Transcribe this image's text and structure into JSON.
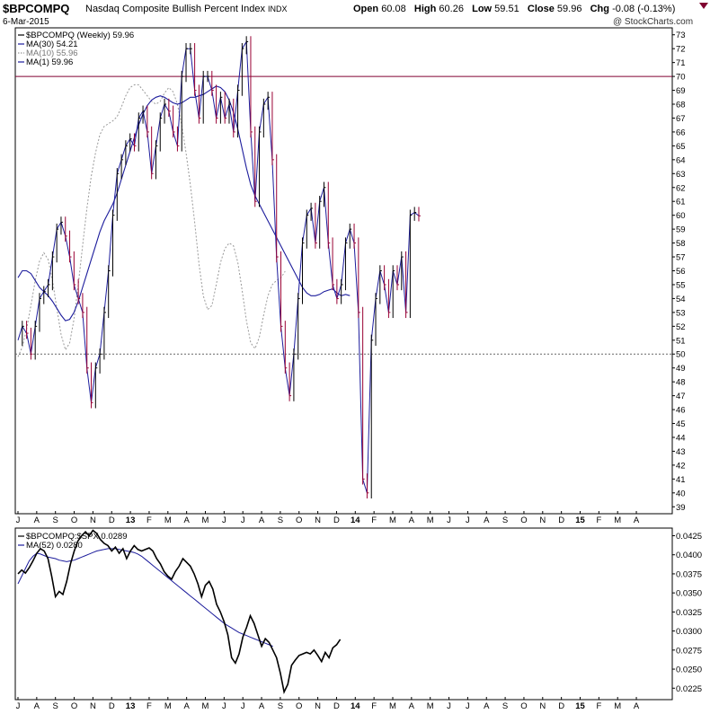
{
  "header": {
    "ticker": "$BPCOMPQ",
    "name": "Nasdaq Composite Bullish Percent Index",
    "exchange": "INDX",
    "date": "6-Mar-2015",
    "open_label": "Open",
    "open": "60.08",
    "high_label": "High",
    "high": "60.26",
    "low_label": "Low",
    "low": "59.51",
    "close_label": "Close",
    "close": "59.96",
    "chg_label": "Chg",
    "chg": "-0.08 (-0.13%)",
    "chg_icon": "down-triangle-icon",
    "watermark": "@ StockCharts.com"
  },
  "legend_main": [
    {
      "label": "$BPCOMPQ (Weekly) 59.96",
      "color": "#000000",
      "style": "solid"
    },
    {
      "label": "MA(30) 54.21",
      "color": "#1c1c9c",
      "style": "solid"
    },
    {
      "label": "MA(10) 55.96",
      "color": "#999999",
      "style": "dotted"
    },
    {
      "label": "MA(1) 59.96",
      "color": "#1c1c9c",
      "style": "solid"
    }
  ],
  "legend_lower": [
    {
      "label": "$BPCOMPQ:$SPX 0.0289",
      "color": "#000000",
      "style": "solid"
    },
    {
      "label": "MA(52) 0.0280",
      "color": "#1c1c9c",
      "style": "solid"
    }
  ],
  "colors": {
    "up": "#000000",
    "down": "#990033",
    "ma": "#1c1c9c",
    "ma10": "#999999",
    "ref70": "#800030"
  },
  "chart_data": [
    {
      "type": "line",
      "x_ticks": [
        "J",
        "A",
        "S",
        "O",
        "N",
        "D",
        "13",
        "F",
        "M",
        "A",
        "M",
        "J",
        "J",
        "A",
        "S",
        "O",
        "N",
        "D",
        "14",
        "F",
        "M",
        "A",
        "M",
        "J",
        "J",
        "A",
        "S",
        "O",
        "N",
        "D",
        "15",
        "F",
        "M",
        "A"
      ],
      "ylim": [
        38.5,
        73.5
      ],
      "y_ticks": [
        39,
        40,
        41,
        42,
        43,
        44,
        45,
        46,
        47,
        48,
        49,
        50,
        51,
        52,
        53,
        54,
        55,
        56,
        57,
        58,
        59,
        60,
        61,
        62,
        63,
        64,
        65,
        66,
        67,
        68,
        69,
        70,
        71,
        72,
        73
      ],
      "reference_lines": [
        70,
        50
      ],
      "grid": false,
      "series": [
        {
          "name": "$BPCOMPQ (Weekly)",
          "x_start": 0.0,
          "x_step": 0.23,
          "values": [
            51,
            52,
            51.5,
            50,
            52,
            54,
            54.5,
            55,
            57,
            59,
            59.5,
            58.5,
            57,
            55,
            54,
            53,
            49,
            46.5,
            49,
            50,
            53,
            56,
            60,
            63,
            64,
            65,
            65.5,
            65,
            67,
            67.5,
            66,
            63,
            65,
            67,
            68,
            67.5,
            66,
            65,
            70,
            72,
            72,
            69,
            67,
            70,
            70,
            69,
            67,
            68.5,
            67,
            68,
            66,
            69,
            72,
            72.5,
            66,
            61,
            66,
            68,
            68.5,
            64,
            57,
            52,
            49,
            47,
            50,
            54,
            58,
            60,
            60.5,
            58,
            61,
            62,
            58,
            55,
            54,
            55,
            58,
            59,
            58,
            53,
            41,
            40,
            51,
            54,
            56,
            55,
            53,
            56,
            55,
            57,
            53,
            60,
            60.2,
            59.96
          ]
        },
        {
          "name": "MA(30)",
          "x_start": 0.0,
          "x_step": 0.23,
          "values": [
            55.5,
            56,
            56,
            55.8,
            55.3,
            54.8,
            54.5,
            54.2,
            53.8,
            53.3,
            52.8,
            52.4,
            52.5,
            53,
            53.8,
            54.8,
            55.8,
            56.8,
            57.8,
            58.8,
            59.6,
            60.2,
            60.8,
            61.6,
            62.6,
            63.6,
            64.6,
            65.6,
            66.5,
            67.3,
            67.9,
            68.3,
            68.5,
            68.6,
            68.5,
            68.3,
            68.1,
            68,
            68.1,
            68.3,
            68.5,
            68.5,
            68.6,
            68.7,
            68.9,
            69.1,
            69.3,
            69.2,
            68.9,
            68.3,
            67.4,
            66.2,
            64.8,
            63.4,
            62.2,
            61.4,
            60.8,
            60.2,
            59.6,
            59,
            58.4,
            57.8,
            57.2,
            56.6,
            56,
            55.4,
            54.8,
            54.4,
            54.2,
            54.2,
            54.3,
            54.5,
            54.6,
            54.7,
            54.4,
            54.2,
            54.3,
            54.21
          ]
        },
        {
          "name": "MA(10)",
          "x_start": 0.0,
          "x_step": 0.23,
          "values": [
            49.8,
            50.5,
            51.8,
            53.5,
            55.3,
            56.7,
            57.3,
            56.8,
            55.3,
            53.3,
            51.4,
            50.3,
            50.8,
            52.5,
            55,
            57.8,
            60.5,
            62.8,
            64.5,
            65.8,
            66.4,
            66.6,
            66.8,
            67.1,
            67.8,
            68.6,
            69.2,
            69.4,
            69.4,
            69,
            68.6,
            68.2,
            68,
            68.2,
            68.8,
            69.2,
            68.9,
            68,
            66.5,
            64.5,
            62.2,
            59.5,
            56.5,
            54.2,
            53.2,
            53.5,
            55,
            56.6,
            57.6,
            58,
            57.8,
            56.6,
            54.6,
            52.4,
            50.8,
            50.4,
            51.2,
            52.8,
            54.2,
            55,
            55.3,
            55.5,
            55.96
          ]
        },
        {
          "name": "MA(1)",
          "x_start": 0.0,
          "x_step": 0.23,
          "values": [
            51,
            52,
            51.5,
            50,
            52,
            54,
            54.5,
            55,
            57,
            59,
            59.5,
            58.5,
            57,
            55,
            54,
            53,
            49,
            46.5,
            49,
            50,
            53,
            56,
            60,
            63,
            64,
            65,
            65.5,
            65,
            67,
            67.5,
            66,
            63,
            65,
            67,
            68,
            67.5,
            66,
            65,
            70,
            72,
            72,
            69,
            67,
            70,
            70,
            69,
            67,
            68.5,
            67,
            68,
            66,
            69,
            72,
            72.5,
            66,
            61,
            66,
            68,
            68.5,
            64,
            57,
            52,
            49,
            47,
            50,
            54,
            58,
            60,
            60.5,
            58,
            61,
            62,
            58,
            55,
            54,
            55,
            58,
            59,
            58,
            53,
            41,
            40,
            51,
            54,
            56,
            55,
            53,
            56,
            55,
            57,
            53,
            60,
            60.2,
            59.96
          ]
        }
      ]
    },
    {
      "type": "line",
      "x_ticks": [
        "J",
        "A",
        "S",
        "O",
        "N",
        "D",
        "13",
        "F",
        "M",
        "A",
        "M",
        "J",
        "J",
        "A",
        "S",
        "O",
        "N",
        "D",
        "14",
        "F",
        "M",
        "A",
        "M",
        "J",
        "J",
        "A",
        "S",
        "O",
        "N",
        "D",
        "15",
        "F",
        "M",
        "A"
      ],
      "ylim": [
        0.021,
        0.0435
      ],
      "y_ticks": [
        "0.0225",
        "0.0250",
        "0.0275",
        "0.0300",
        "0.0325",
        "0.0350",
        "0.0375",
        "0.0400",
        "0.0425"
      ],
      "grid": false,
      "series": [
        {
          "name": "$BPCOMPQ:$SPX",
          "x_start": 0.0,
          "x_step": 0.2,
          "values": [
            0.0375,
            0.038,
            0.0376,
            0.0383,
            0.0392,
            0.0402,
            0.0408,
            0.0405,
            0.0395,
            0.0372,
            0.0345,
            0.0352,
            0.0348,
            0.0365,
            0.0388,
            0.0405,
            0.0418,
            0.0425,
            0.043,
            0.0425,
            0.0432,
            0.0428,
            0.042,
            0.0415,
            0.0412,
            0.0405,
            0.041,
            0.0402,
            0.0408,
            0.0395,
            0.0405,
            0.0412,
            0.0407,
            0.0405,
            0.0407,
            0.0409,
            0.0405,
            0.0395,
            0.0388,
            0.0378,
            0.0372,
            0.0368,
            0.0378,
            0.0385,
            0.0395,
            0.039,
            0.0385,
            0.0375,
            0.0362,
            0.0345,
            0.036,
            0.0365,
            0.0355,
            0.0335,
            0.0325,
            0.0312,
            0.0295,
            0.0265,
            0.0258,
            0.027,
            0.0292,
            0.0305,
            0.032,
            0.031,
            0.0295,
            0.028,
            0.029,
            0.0285,
            0.0275,
            0.0265,
            0.0245,
            0.022,
            0.023,
            0.0255,
            0.0262,
            0.0268,
            0.027,
            0.0272,
            0.027,
            0.0275,
            0.0268,
            0.026,
            0.0272,
            0.0265,
            0.0278,
            0.0282,
            0.0289
          ]
        },
        {
          "name": "MA(52)",
          "x_start": 0.0,
          "x_step": 0.2,
          "values": [
            0.0362,
            0.0372,
            0.0382,
            0.0392,
            0.0398,
            0.0402,
            0.0401,
            0.0399,
            0.0397,
            0.0396,
            0.0395,
            0.0393,
            0.0392,
            0.0391,
            0.0392,
            0.0393,
            0.0395,
            0.0397,
            0.0399,
            0.0401,
            0.0403,
            0.0405,
            0.0406,
            0.0407,
            0.0408,
            0.0408,
            0.0408,
            0.0407,
            0.0406,
            0.0405,
            0.0404,
            0.0403,
            0.0401,
            0.0398,
            0.0394,
            0.039,
            0.0386,
            0.0382,
            0.0378,
            0.0374,
            0.037,
            0.0366,
            0.0362,
            0.0358,
            0.0354,
            0.035,
            0.0346,
            0.0342,
            0.0338,
            0.0334,
            0.033,
            0.0326,
            0.0322,
            0.0318,
            0.0314,
            0.031,
            0.0307,
            0.0304,
            0.0301,
            0.0298,
            0.0296,
            0.0294,
            0.0292,
            0.029,
            0.0288,
            0.0286,
            0.0284,
            0.0282,
            0.028
          ]
        }
      ]
    }
  ]
}
